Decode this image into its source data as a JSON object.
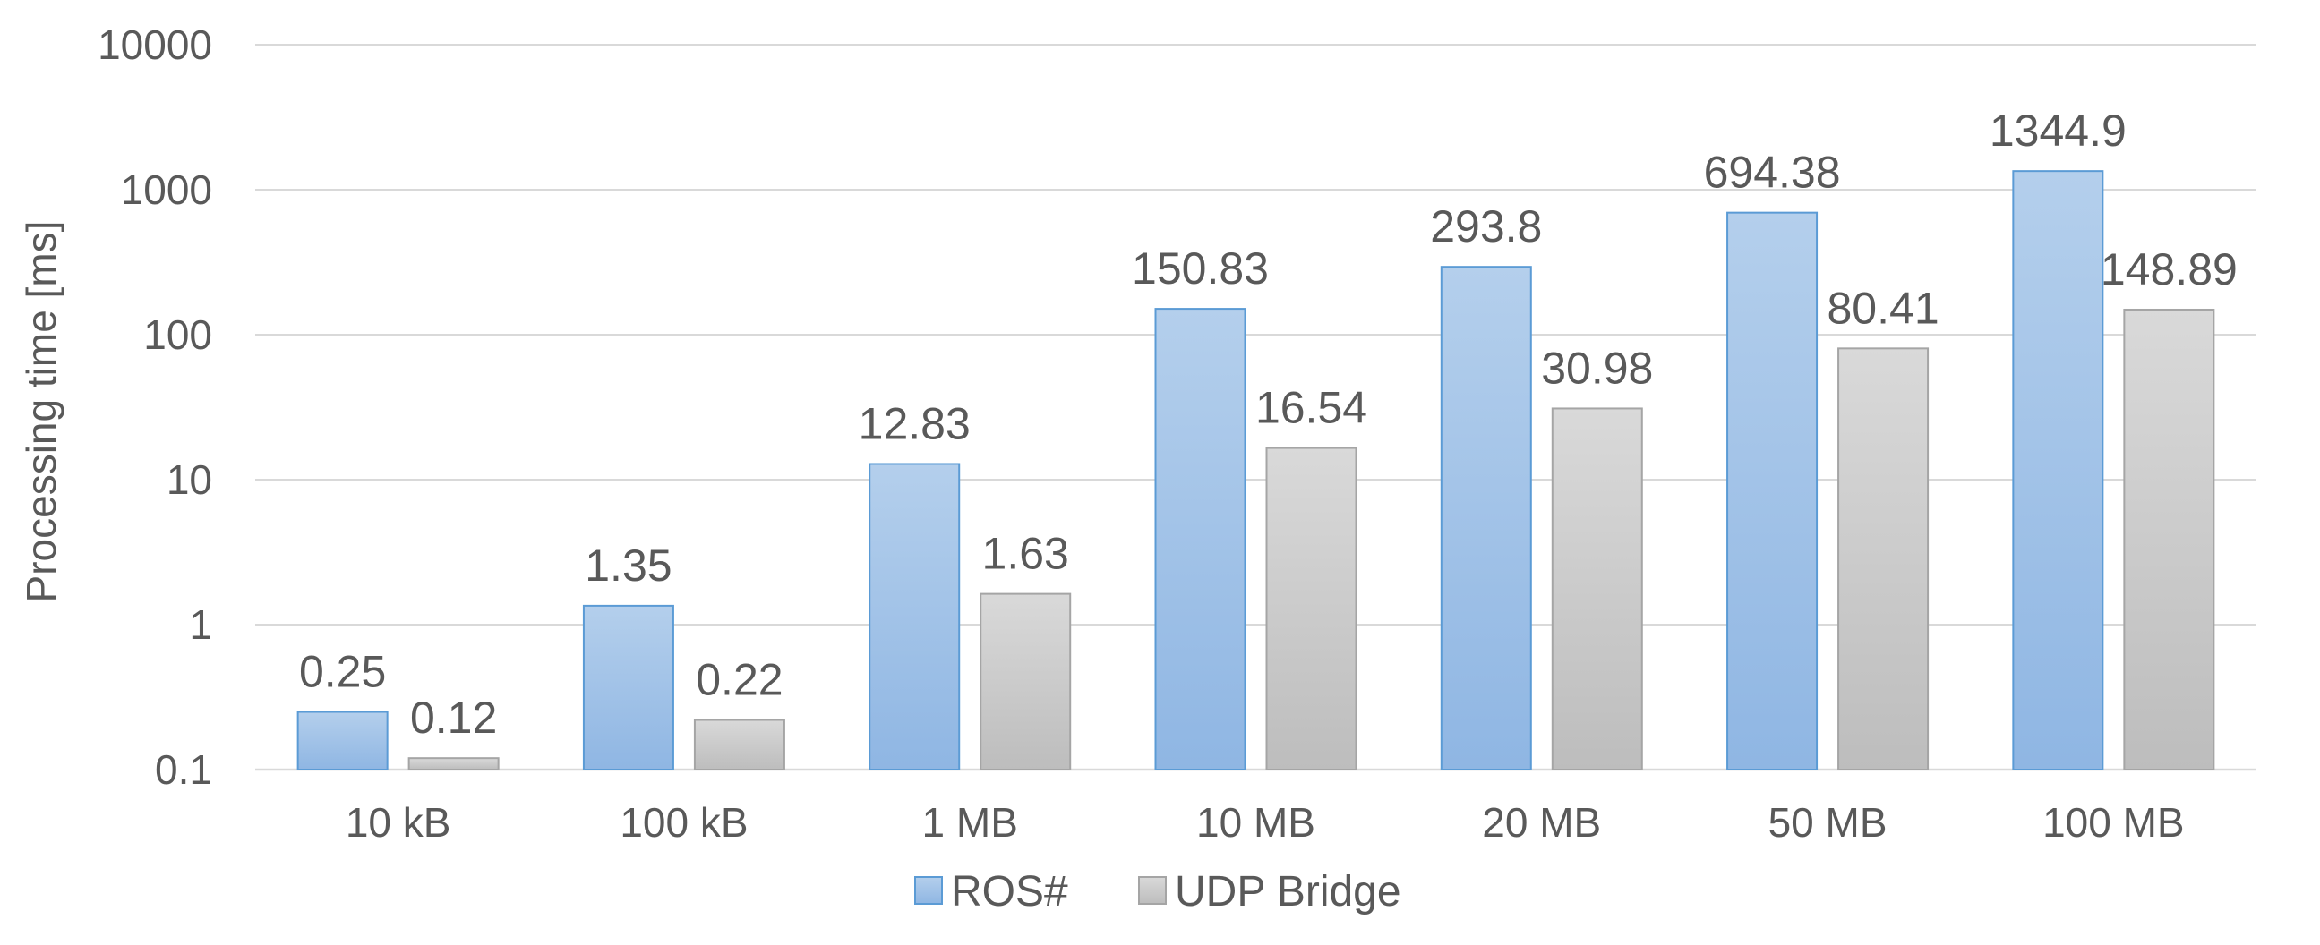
{
  "chart_data": {
    "type": "bar",
    "y_scale": "log",
    "ylabel": "Processing time [ms]",
    "xlabel": "",
    "ylim": [
      0.1,
      10000
    ],
    "y_ticks": [
      "0.1",
      "1",
      "10",
      "100",
      "1000",
      "10000"
    ],
    "grid": true,
    "legend_position": "bottom",
    "categories": [
      "10 kB",
      "100 kB",
      "1 MB",
      "10 MB",
      "20 MB",
      "50 MB",
      "100 MB"
    ],
    "series": [
      {
        "name": "ROS#",
        "values": [
          0.25,
          1.35,
          12.83,
          150.83,
          293.8,
          694.38,
          1344.9
        ],
        "labels": [
          "0.25",
          "1.35",
          "12.83",
          "150.83",
          "293.8",
          "694.38",
          "1344.9"
        ],
        "color": "#9dc3e6",
        "border": "#5b9bd5"
      },
      {
        "name": "UDP Bridge",
        "values": [
          0.12,
          0.22,
          1.63,
          16.54,
          30.98,
          80.41,
          148.89
        ],
        "labels": [
          "0.12",
          "0.22",
          "1.63",
          "16.54",
          "30.98",
          "80.41",
          "148.89"
        ],
        "color": "#d0d0d0",
        "border": "#a5a5a5"
      }
    ]
  }
}
